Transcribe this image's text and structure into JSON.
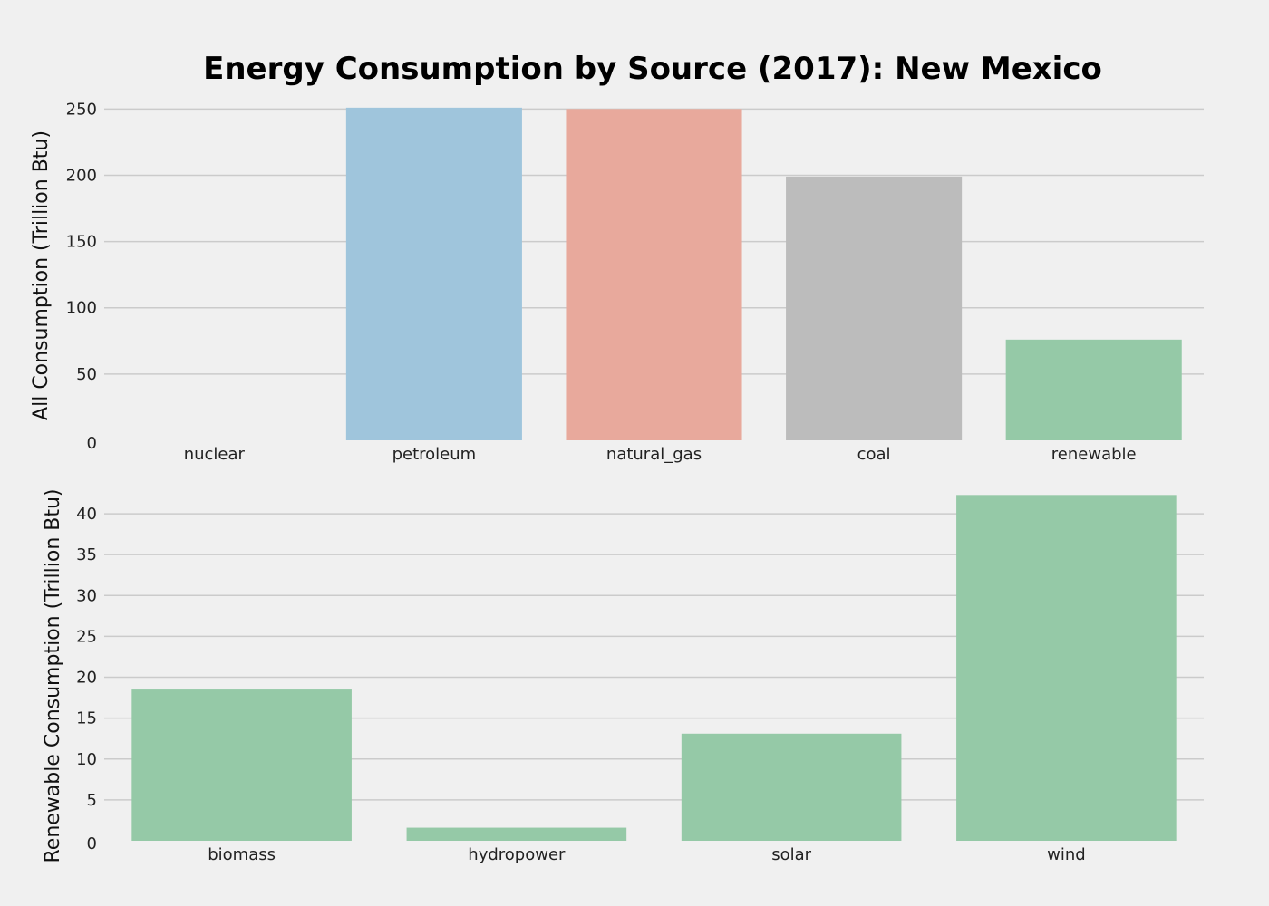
{
  "title": "Energy Consumption by Source (2017): New Mexico",
  "colors": {
    "background": "#f0f0f0",
    "grid": "#cbcbcb",
    "petroleum": "#9fc5dc",
    "natural_gas": "#e8a99c",
    "coal": "#bcbcbc",
    "green": "#95c9a7"
  },
  "chart_data": [
    {
      "type": "bar",
      "ylabel": "All Consumption (Trillion Btu)",
      "xlabel": "",
      "categories": [
        "nuclear",
        "petroleum",
        "natural_gas",
        "coal",
        "renewable"
      ],
      "values": [
        0,
        251,
        250,
        199,
        76
      ],
      "bar_colors": [
        "#9fc5dc",
        "#9fc5dc",
        "#e8a99c",
        "#bcbcbc",
        "#95c9a7"
      ],
      "yticks": [
        0,
        50,
        100,
        150,
        200,
        250
      ],
      "ylim": [
        0,
        255
      ],
      "grid": true
    },
    {
      "type": "bar",
      "ylabel": "Renewable Consumption (Trillion Btu)",
      "xlabel": "",
      "categories": [
        "biomass",
        "hydropower",
        "solar",
        "wind"
      ],
      "values": [
        18.5,
        1.6,
        13.1,
        42.3
      ],
      "bar_colors": [
        "#95c9a7",
        "#95c9a7",
        "#95c9a7",
        "#95c9a7"
      ],
      "yticks": [
        0,
        5,
        10,
        15,
        20,
        25,
        30,
        35,
        40
      ],
      "ylim": [
        0,
        43
      ],
      "grid": true
    }
  ]
}
